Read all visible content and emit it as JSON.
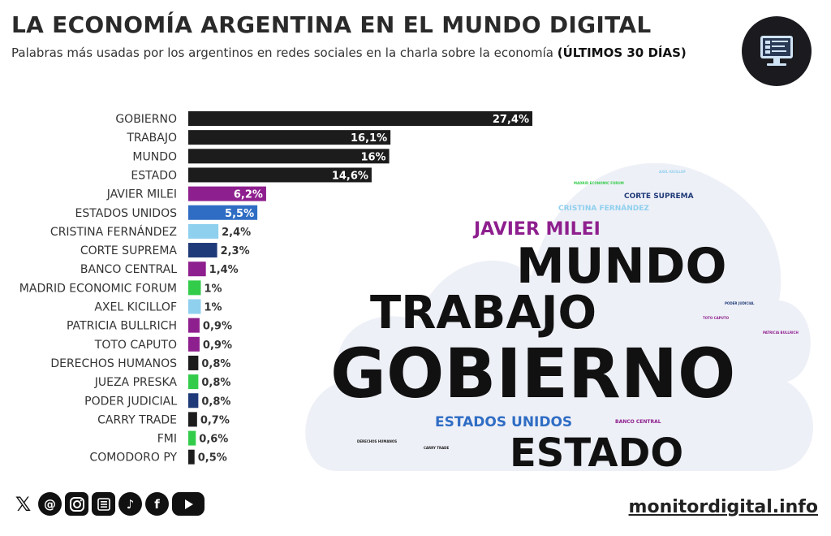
{
  "header": {
    "title": "LA ECONOMÍA ARGENTINA EN EL MUNDO DIGITAL",
    "subtitle": "Palabras más usadas por los argentinos en redes sociales en la charla sobre la economía",
    "subtitle_bold": "(ÚLTIMOS 30 DÍAS)"
  },
  "chart_data": {
    "type": "bar",
    "orientation": "horizontal",
    "title": "LA ECONOMÍA ARGENTINA EN EL MUNDO DIGITAL",
    "categories": [
      "GOBIERNO",
      "TRABAJO",
      "MUNDO",
      "ESTADO",
      "JAVIER MILEI",
      "ESTADOS UNIDOS",
      "CRISTINA FERNÁNDEZ",
      "CORTE SUPREMA",
      "BANCO CENTRAL",
      "MADRID ECONOMIC FORUM",
      "AXEL KICILLOF",
      "PATRICIA BULLRICH",
      "TOTO CAPUTO",
      "DERECHOS HUMANOS",
      "JUEZA PRESKA",
      "PODER JUDICIAL",
      "CARRY TRADE",
      "FMI",
      "COMODORO PY"
    ],
    "values": [
      27.4,
      16.1,
      16,
      14.6,
      6.2,
      5.5,
      2.4,
      2.3,
      1.4,
      1,
      1,
      0.9,
      0.9,
      0.8,
      0.8,
      0.8,
      0.7,
      0.6,
      0.5
    ],
    "labels": [
      "27,4%",
      "16,1%",
      "16%",
      "14,6%",
      "6,2%",
      "5,5%",
      "2,4%",
      "2,3%",
      "1,4%",
      "1%",
      "1%",
      "0,9%",
      "0,9%",
      "0,8%",
      "0,8%",
      "0,8%",
      "0,7%",
      "0,6%",
      "0,5%"
    ],
    "colors": [
      "#1c1c1c",
      "#1c1c1c",
      "#1c1c1c",
      "#1c1c1c",
      "#8e1f8e",
      "#2f6dc4",
      "#8fd0ee",
      "#1f3a78",
      "#8e1f8e",
      "#33cc4a",
      "#8fd0ee",
      "#8e1f8e",
      "#8e1f8e",
      "#1c1c1c",
      "#33cc4a",
      "#1f3a78",
      "#1c1c1c",
      "#33cc4a",
      "#1c1c1c"
    ],
    "xlim": [
      0,
      27.4
    ],
    "unit": "%"
  },
  "wordcloud": {
    "words": [
      {
        "text": "GOBIERNO",
        "color": "#111111"
      },
      {
        "text": "MUNDO",
        "color": "#111111"
      },
      {
        "text": "TRABAJO",
        "color": "#111111"
      },
      {
        "text": "ESTADO",
        "color": "#111111"
      },
      {
        "text": "JAVIER MILEI",
        "color": "#8e1f8e"
      },
      {
        "text": "ESTADOS UNIDOS",
        "color": "#2f6dc4"
      },
      {
        "text": "CORTE SUPREMA",
        "color": "#1f3a78"
      },
      {
        "text": "CRISTINA FERNÁNDEZ",
        "color": "#8fd0ee"
      },
      {
        "text": "BANCO CENTRAL",
        "color": "#8e1f8e"
      },
      {
        "text": "MADRID ECONOMIC FORUM",
        "color": "#33cc4a"
      },
      {
        "text": "AXEL KICILLOF",
        "color": "#8fd0ee"
      },
      {
        "text": "PATRICIA BULLRICH",
        "color": "#8e1f8e"
      },
      {
        "text": "TOTO CAPUTO",
        "color": "#8e1f8e"
      },
      {
        "text": "PODER JUDICIAL",
        "color": "#1f3a78"
      },
      {
        "text": "DERECHOS HUMANOS",
        "color": "#1c1c1c"
      },
      {
        "text": "CARRY TRADE",
        "color": "#1c1c1c"
      }
    ]
  },
  "footer": {
    "website": "monitordigital.info",
    "social_icons": [
      "x-icon",
      "threads-icon",
      "instagram-icon",
      "substack-icon",
      "tiktok-icon",
      "facebook-icon",
      "youtube-icon"
    ]
  }
}
